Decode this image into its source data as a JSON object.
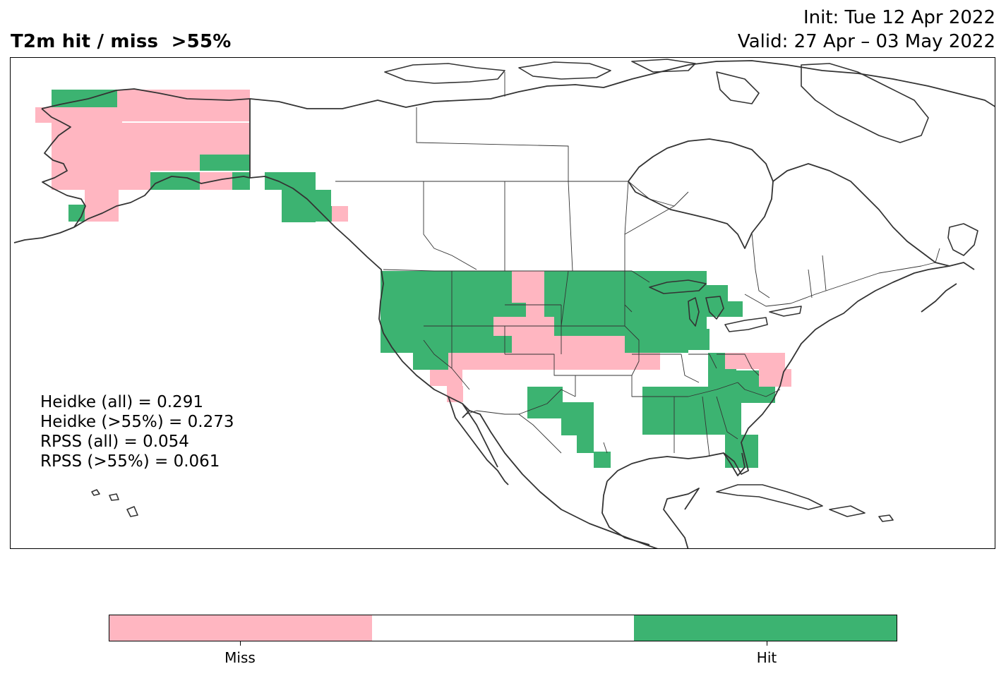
{
  "header": {
    "title": "T2m hit / miss  >55%",
    "init": "Init: Tue 12 Apr 2022",
    "valid": "Valid: 27 Apr – 03 May 2022"
  },
  "scores": [
    "Heidke (all) = 0.291",
    "Heidke (>55%) = 0.273",
    "RPSS (all) = 0.054",
    "RPSS (>55%) = 0.061"
  ],
  "colors": {
    "miss": "#ffb6c1",
    "neutral": "#ffffff",
    "hit": "#3cb371",
    "coastline": "#333333",
    "border": "#333333"
  },
  "colorbar": {
    "segments": [
      "miss",
      "neutral",
      "hit"
    ],
    "labels": [
      "Miss",
      "Hit"
    ]
  }
}
